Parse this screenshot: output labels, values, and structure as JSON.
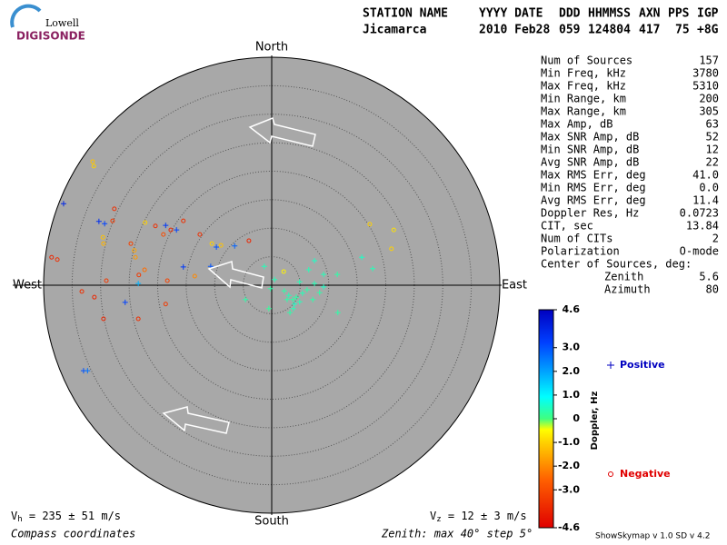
{
  "logo": {
    "line1": "Lowell",
    "line2": "DIGISONDE"
  },
  "header": {
    "labels": [
      "STATION NAME",
      "YYYY DATE",
      "DDD",
      "HHMMSS",
      "AXN",
      "PPS",
      "IGP"
    ],
    "values": [
      "Jicamarca",
      "2010 Feb28",
      "059",
      "124804",
      "417",
      "75",
      "+8G"
    ]
  },
  "stats": {
    "rows": [
      [
        "Num of Sources",
        "157"
      ],
      [
        "Min Freq, kHz",
        "3780"
      ],
      [
        "Max Freq, kHz",
        "5310"
      ],
      [
        "Min Range, km",
        "200"
      ],
      [
        "Max Range, km",
        "305"
      ],
      [
        "Max Amp, dB",
        "63"
      ],
      [
        "Max SNR Amp, dB",
        "52"
      ],
      [
        "Min SNR Amp, dB",
        "12"
      ],
      [
        "Avg SNR Amp, dB",
        "22"
      ],
      [
        "Max RMS Err, deg",
        "41.0"
      ],
      [
        "Min RMS Err, deg",
        "0.0"
      ],
      [
        "Avg RMS Err, deg",
        "11.4"
      ],
      [
        "Doppler Res, Hz",
        "0.0723"
      ],
      [
        "CIT, sec",
        "13.84"
      ],
      [
        "Num of CITs",
        "2"
      ],
      [
        "Polarization",
        "O-mode"
      ]
    ],
    "center": {
      "title": "Center of Sources, deg:",
      "rows": [
        [
          "Zenith",
          "5.6"
        ],
        [
          "Azimuth",
          "80"
        ]
      ]
    }
  },
  "footer": {
    "vh": {
      "symbol": "V",
      "sub": "h",
      "text": " = 235 ± 51 m/s"
    },
    "vz": {
      "symbol": "V",
      "sub": "z",
      "text": " = 12 ± 3 m/s"
    },
    "coords": "Compass coordinates",
    "zenith": "Zenith: max 40°  step 5°",
    "version": "ShowSkymap v 1.0  SD v 4.2"
  },
  "chart_data": {
    "type": "skymap",
    "compass": {
      "north": "North",
      "south": "South",
      "east": "East",
      "west": "West"
    },
    "rlim": [
      0,
      40
    ],
    "rticks": [
      5,
      10,
      15,
      20,
      25,
      30,
      35
    ],
    "colorbar": {
      "label": "Doppler, Hz",
      "lim": [
        -4.6,
        4.6
      ],
      "ticks": [
        4.6,
        {
          "value": 3,
          "label": "3.0"
        },
        {
          "value": 2,
          "label": "2.0"
        },
        {
          "value": 1,
          "label": "1.0"
        },
        0,
        {
          "value": -1,
          "label": "-1.0"
        },
        {
          "value": -2,
          "label": "-2.0"
        },
        {
          "value": -3,
          "label": "-3.0"
        },
        -4.6
      ]
    },
    "series": [
      {
        "name": "Positive",
        "color": "#0000c0",
        "marker": "plus",
        "x": [
          -36.5,
          -30.3,
          -29.3,
          -18.6,
          -16.7,
          -9.7,
          -6.5,
          -15.5,
          -10.7,
          -25.7,
          -33.0,
          -32.3,
          -23.4,
          -1.3,
          -0.2,
          0.5,
          2.2,
          3.0,
          3.7,
          4.3,
          4.9,
          4.0,
          2.7,
          5.4,
          6.2,
          7.5,
          8.4,
          9.1,
          6.5,
          7.5,
          9.1,
          11.5,
          15.8,
          17.7,
          11.6,
          -0.5,
          -4.6,
          3.8,
          3.2,
          4.9,
          7.2
        ],
        "y": [
          14.3,
          11.2,
          10.8,
          10.5,
          9.7,
          6.7,
          6.9,
          3.2,
          3.3,
          -3.0,
          -15.0,
          -15.0,
          0.3,
          3.3,
          -0.6,
          1.0,
          -1.0,
          -1.8,
          -2.5,
          -2.1,
          -2.9,
          -3.3,
          -2.5,
          -1.4,
          -0.8,
          0.3,
          -1.3,
          -0.3,
          2.7,
          4.3,
          1.9,
          1.9,
          4.9,
          2.9,
          -4.8,
          -4.1,
          -2.5,
          -4.1,
          -4.8,
          0.6,
          -2.5
        ],
        "doppler": [
          3.8,
          3.6,
          3.2,
          3.4,
          3.2,
          3.0,
          2.8,
          3.4,
          3.0,
          3.2,
          3.0,
          2.6,
          1.8,
          0.4,
          0.3,
          0.4,
          0.3,
          0.4,
          0.3,
          0.3,
          0.4,
          0.5,
          0.3,
          0.4,
          0.3,
          0.4,
          0.3,
          0.5,
          0.4,
          0.5,
          0.4,
          0.3,
          0.5,
          0.4,
          0.3,
          0.2,
          0.3,
          0.4,
          0.3,
          0.4,
          0.3
        ]
      },
      {
        "name": "Negative",
        "color": "#e00000",
        "marker": "circle",
        "x": [
          -31.4,
          -31.2,
          17.2,
          21.4,
          21.0,
          -22.2,
          -29.6,
          -29.5,
          -24.1,
          -23.9,
          -10.5,
          -8.9,
          2.1,
          -38.6,
          -37.6,
          -27.6,
          -27.9,
          -24.7,
          -20.4,
          -17.7,
          -15.5,
          -19.0,
          -12.6,
          -4.0,
          -33.3,
          -31.1,
          -29.0,
          -29.5,
          -23.4,
          -18.6,
          -18.3,
          -23.3,
          -22.3,
          -13.5
        ],
        "y": [
          21.7,
          20.9,
          10.7,
          9.7,
          6.4,
          11.0,
          8.4,
          7.3,
          6.1,
          4.9,
          7.3,
          7.0,
          2.4,
          4.9,
          4.5,
          13.4,
          11.3,
          7.3,
          10.4,
          9.7,
          11.3,
          8.9,
          8.9,
          7.8,
          -1.1,
          -2.1,
          0.8,
          -5.9,
          -5.9,
          -3.3,
          0.8,
          1.8,
          2.7,
          1.6
        ],
        "doppler": [
          -1.2,
          -1.0,
          -1.0,
          -0.8,
          -1.0,
          -1.0,
          -1.2,
          -1.4,
          -1.6,
          -1.8,
          -1.0,
          -1.2,
          -0.6,
          -3.8,
          -3.6,
          -3.6,
          -3.4,
          -3.2,
          -3.6,
          -3.8,
          -3.6,
          -3.0,
          -3.6,
          -3.8,
          -3.6,
          -3.8,
          -3.4,
          -3.8,
          -3.6,
          -3.4,
          -3.2,
          -3.4,
          -2.4,
          -2.0
        ]
      }
    ]
  }
}
